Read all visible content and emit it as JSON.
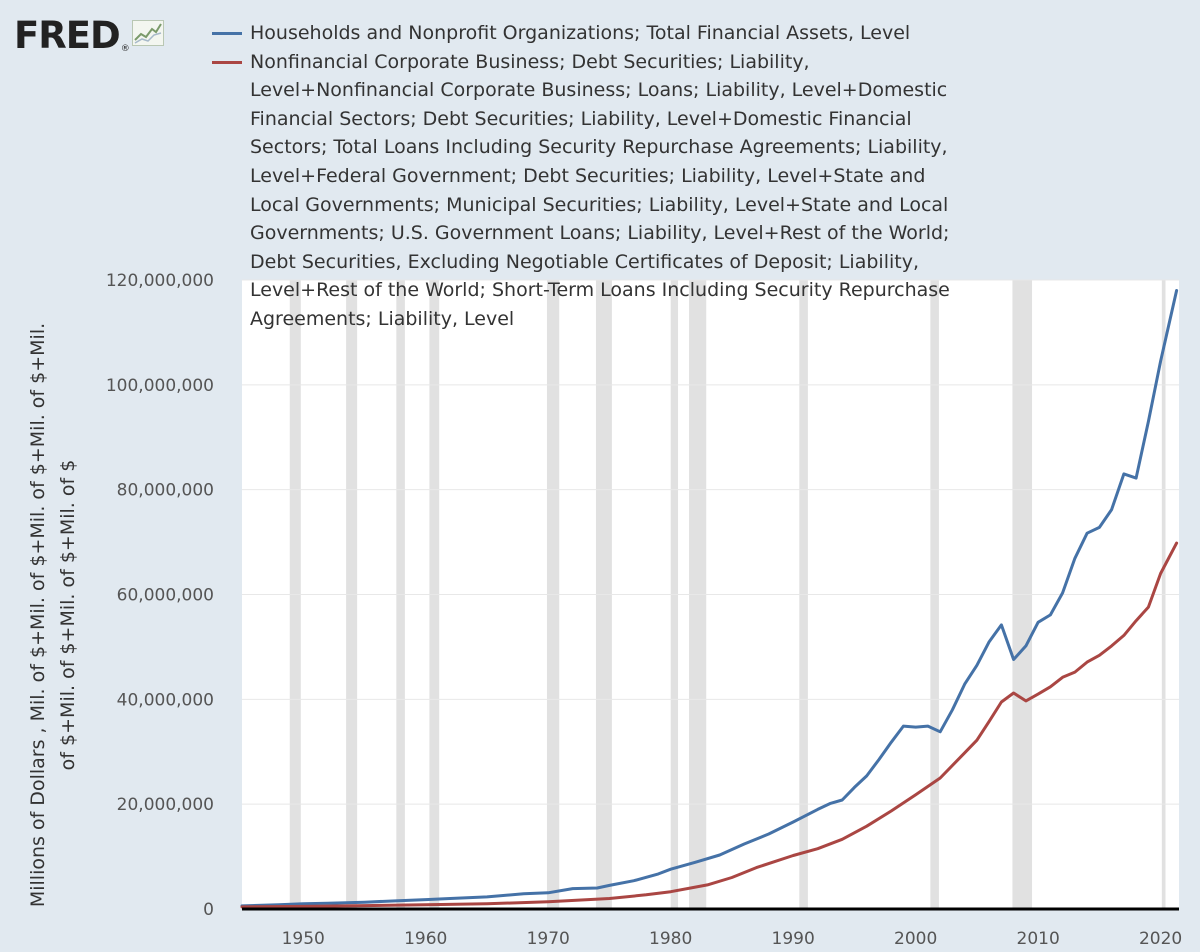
{
  "branding": {
    "logo_text": "FRED",
    "logo_mark": "®",
    "logo_icon": "trend-line-icon"
  },
  "colors": {
    "background": "#e1e9f0",
    "plot_background": "#ffffff",
    "recession_band": "#e1e1e1",
    "series_blue": "#4572a7",
    "series_red": "#aa4643",
    "axis_line": "#000000",
    "tick_text": "#555555"
  },
  "chart_data": {
    "type": "line",
    "ylabel": "Millions of Dollars , Mil. of $+Mil. of $+Mil. of $+Mil. of $+Mil. of $+Mil. of $+Mil. of $+Mil. of $",
    "xlabel": "",
    "xlim": [
      1945,
      2021.5
    ],
    "ylim": [
      0,
      120000000
    ],
    "grid": "horizontal",
    "legend_position": "top",
    "x_ticks": [
      "1950",
      "1960",
      "1970",
      "1980",
      "1990",
      "2000",
      "2010",
      "2020"
    ],
    "y_ticks": [
      "0",
      "20,000,000",
      "40,000,000",
      "60,000,000",
      "80,000,000",
      "100,000,000",
      "120,000,000"
    ],
    "recessions": [
      [
        1948.9,
        1949.8
      ],
      [
        1953.5,
        1954.4
      ],
      [
        1957.6,
        1958.3
      ],
      [
        1960.3,
        1961.1
      ],
      [
        1969.9,
        1970.9
      ],
      [
        1973.9,
        1975.2
      ],
      [
        1980.0,
        1980.6
      ],
      [
        1981.5,
        1982.9
      ],
      [
        1990.5,
        1991.2
      ],
      [
        2001.2,
        2001.9
      ],
      [
        2007.9,
        2009.5
      ],
      [
        2020.1,
        2020.4
      ]
    ],
    "series": [
      {
        "name": "Households and Nonprofit Organizations; Total Financial Assets, Level",
        "color": "#4572a7",
        "x": [
          1945,
          1948,
          1950,
          1952,
          1955,
          1958,
          1960,
          1962,
          1965,
          1968,
          1970,
          1972,
          1974,
          1975,
          1977,
          1979,
          1980,
          1982,
          1984,
          1986,
          1988,
          1990,
          1992,
          1993,
          1994,
          1995,
          1996,
          1997,
          1998,
          1999,
          2000,
          2001,
          2002,
          2003,
          2004,
          2005,
          2006,
          2007,
          2008,
          2009,
          2010,
          2011,
          2012,
          2013,
          2014,
          2015,
          2016,
          2017,
          2018,
          2019,
          2020,
          2021.3
        ],
        "values": [
          600000,
          800000,
          1000000,
          1100000,
          1300000,
          1600000,
          1800000,
          2000000,
          2300000,
          2900000,
          3100000,
          3900000,
          4000000,
          4500000,
          5400000,
          6700000,
          7600000,
          8900000,
          10300000,
          12400000,
          14300000,
          16600000,
          19000000,
          20100000,
          20800000,
          23200000,
          25400000,
          28500000,
          31800000,
          34900000,
          34700000,
          34900000,
          33800000,
          38000000,
          42900000,
          46500000,
          51000000,
          54200000,
          47600000,
          50200000,
          54700000,
          56100000,
          60300000,
          66900000,
          71700000,
          72800000,
          76200000,
          83000000,
          82200000,
          93000000,
          104500000,
          118000000
        ]
      },
      {
        "name": "Nonfinancial Corporate Business; Debt Securities; Liability, Level+Nonfinancial Corporate Business; Loans; Liability, Level+Domestic Financial Sectors; Debt Securities; Liability, Level+Domestic Financial Sectors; Total Loans Including Security Repurchase Agreements; Liability, Level+Federal Government; Debt Securities; Liability, Level+State and Local Governments; Municipal Securities; Liability, Level+State and Local Governments; U.S. Government Loans; Liability, Level+Rest of the World; Debt Securities, Excluding Negotiable Certificates of Deposit; Liability, Level+Rest of the World; Short-Term Loans Including Security Repurchase Agreements; Liability, Level",
        "color": "#aa4643",
        "x": [
          1945,
          1950,
          1955,
          1960,
          1965,
          1970,
          1975,
          1978,
          1980,
          1983,
          1985,
          1987,
          1990,
          1992,
          1994,
          1996,
          1998,
          2000,
          2002,
          2004,
          2005,
          2006,
          2007,
          2008,
          2009,
          2010,
          2011,
          2012,
          2013,
          2014,
          2015,
          2016,
          2017,
          2018,
          2019,
          2020,
          2021.3
        ],
        "values": [
          400000,
          500000,
          650000,
          800000,
          1000000,
          1400000,
          2000000,
          2700000,
          3300000,
          4600000,
          6000000,
          7900000,
          10200000,
          11500000,
          13300000,
          15800000,
          18700000,
          21800000,
          25000000,
          29800000,
          32200000,
          35800000,
          39500000,
          41200000,
          39700000,
          41000000,
          42400000,
          44200000,
          45200000,
          47100000,
          48400000,
          50200000,
          52200000,
          55000000,
          57600000,
          64000000,
          69800000
        ]
      }
    ]
  }
}
